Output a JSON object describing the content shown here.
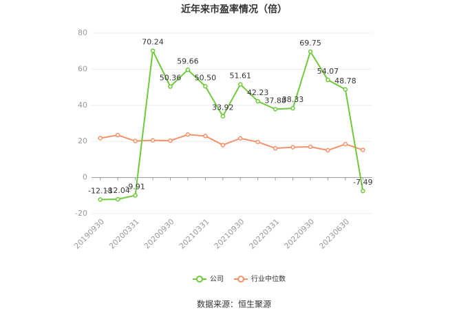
{
  "chart_data": {
    "type": "line",
    "title": "近年来市盈率情况（倍）",
    "categories": [
      "20190930",
      null,
      "20200331",
      null,
      "20200930",
      null,
      "20210331",
      null,
      "20210930",
      null,
      "20220331",
      null,
      "20220930",
      null,
      "20230630",
      null
    ],
    "series": [
      {
        "name": "公司",
        "color": "#6dc93b",
        "values": [
          -12.18,
          -12.04,
          -9.91,
          70.24,
          50.36,
          59.66,
          50.5,
          33.92,
          51.61,
          42.23,
          37.88,
          38.33,
          69.75,
          54.07,
          48.78,
          -7.49
        ],
        "value_labels": [
          "-12.18",
          "-12.04",
          "-9.91",
          "70.24",
          "50.36",
          "59.66",
          "50.50",
          "33.92",
          "51.61",
          "42.23",
          "37.88",
          "38.33",
          "69.75",
          "54.07",
          "48.78",
          "-7.49"
        ]
      },
      {
        "name": "行业中位数",
        "color": "#f4916a",
        "values": [
          21.8,
          23.5,
          20.2,
          20.6,
          20.4,
          23.8,
          23.0,
          18.0,
          21.7,
          19.7,
          16.2,
          16.8,
          17.0,
          15.1,
          18.5,
          15.3
        ]
      }
    ],
    "ylim": [
      -20,
      80
    ],
    "yticks": [
      -20,
      0,
      20,
      40,
      60,
      80
    ],
    "grid": true,
    "legend": "bottom",
    "source": "数据来源：恒生聚源"
  }
}
